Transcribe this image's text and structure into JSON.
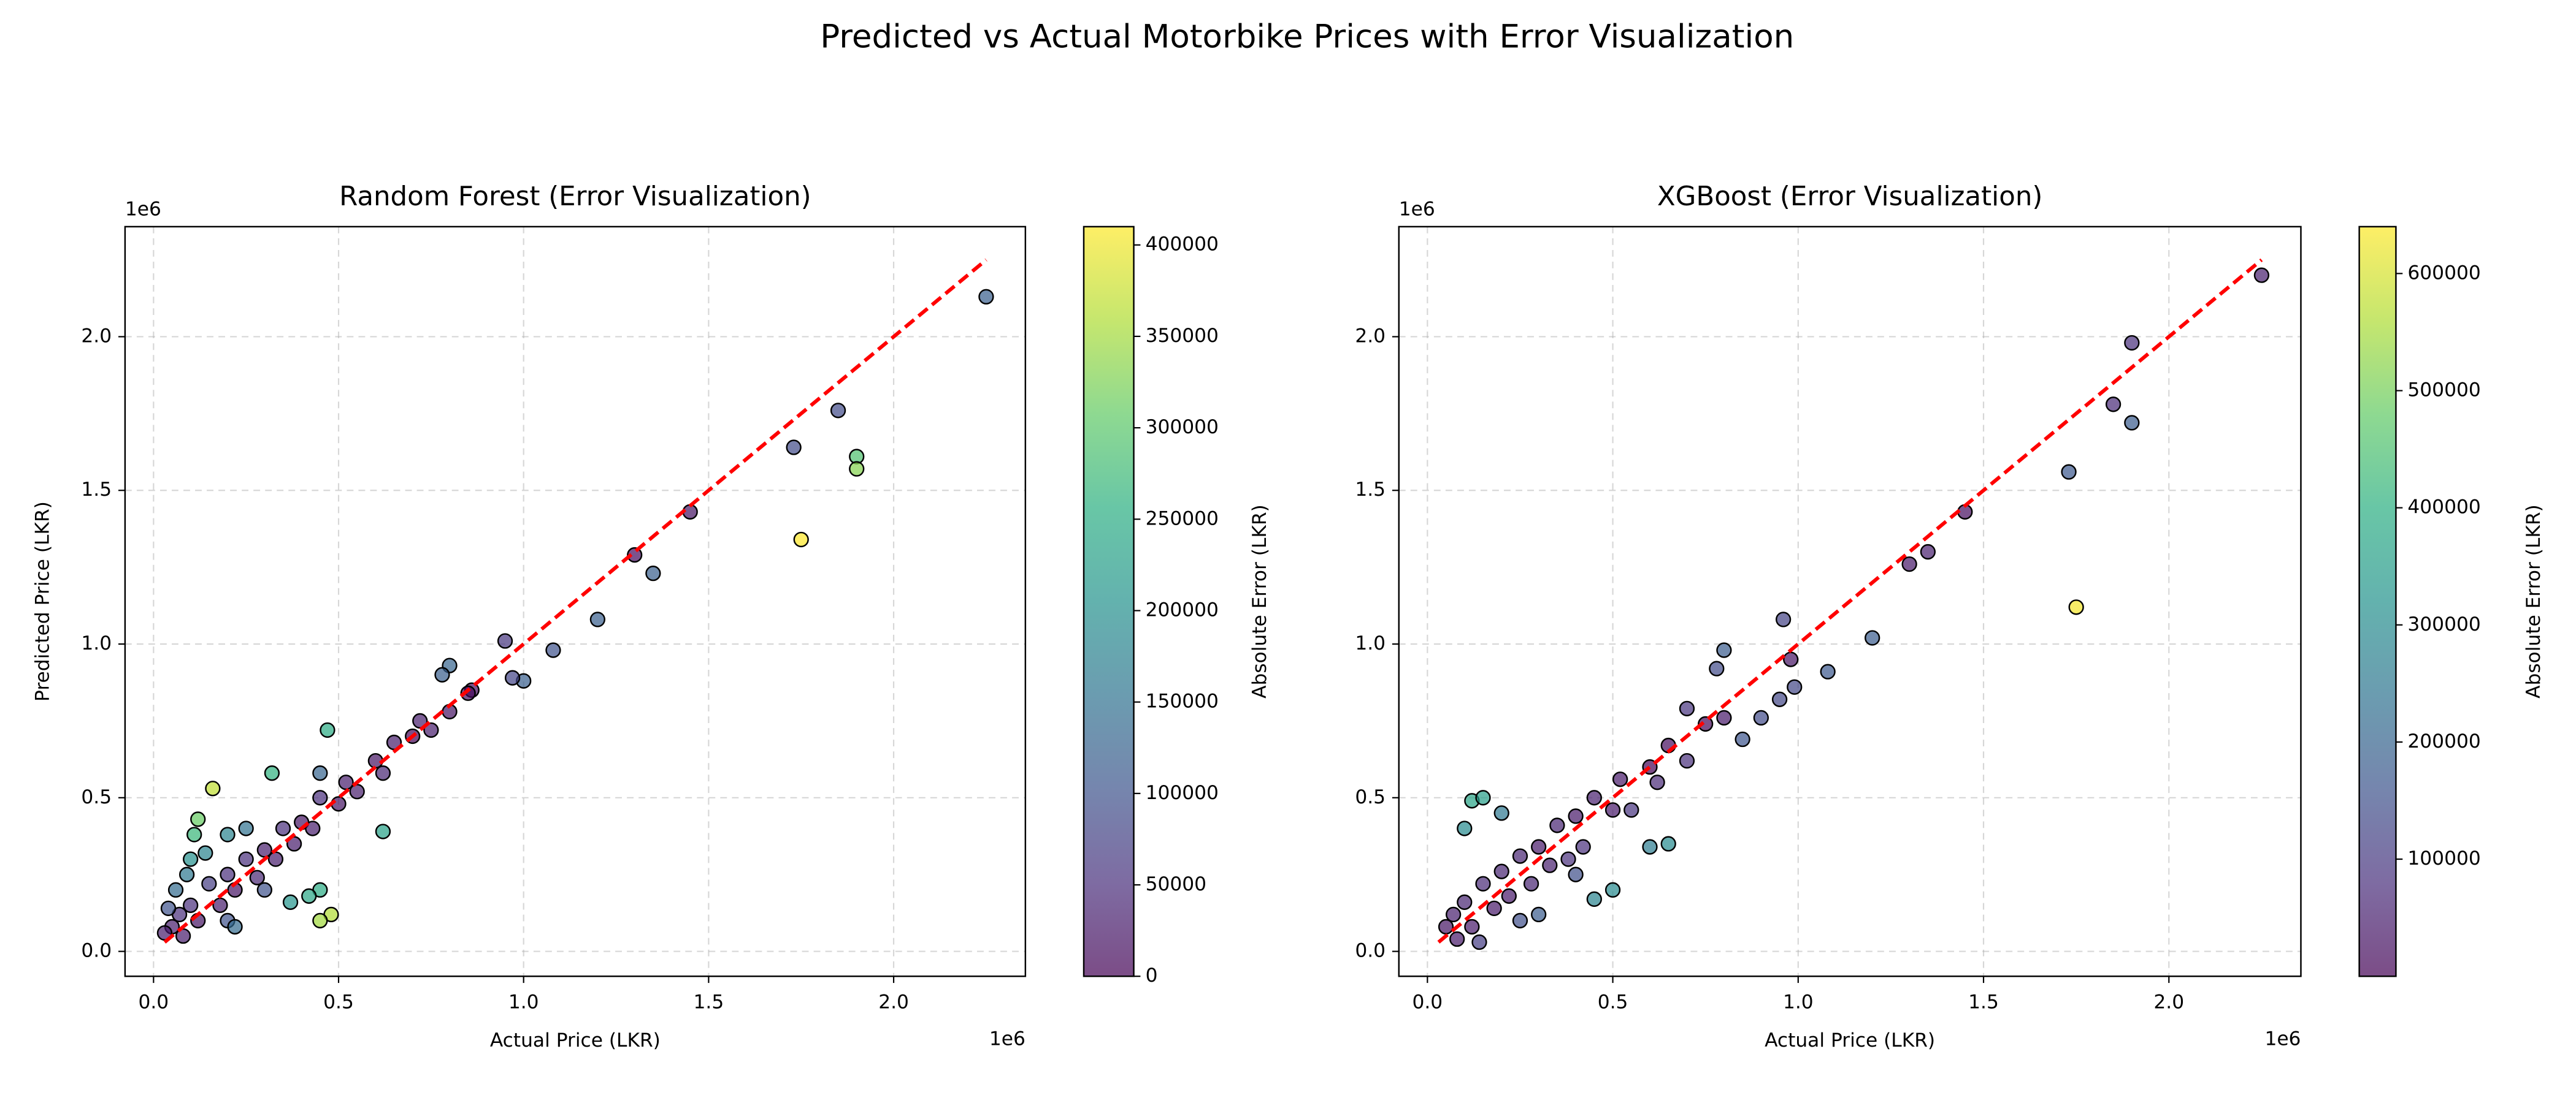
{
  "title": "Predicted vs Actual Motorbike Prices with Error Visualization",
  "chart_data": [
    {
      "type": "scatter",
      "title": "Random Forest (Error Visualization)",
      "xlabel": "Actual Price (LKR)",
      "ylabel": "Predicted Price (LKR)",
      "x_offset_label": "1e6",
      "y_offset_label": "1e6",
      "xlim": [
        -0.077,
        2.356
      ],
      "ylim": [
        -0.081,
        2.358
      ],
      "xticks": [
        {
          "value": 0,
          "label": "0.0"
        },
        0.5,
        {
          "value": 1,
          "label": "1.0"
        },
        1.5,
        {
          "value": 2,
          "label": "2.0"
        }
      ],
      "yticks": [
        {
          "value": 0,
          "label": "0.0"
        },
        0.5,
        {
          "value": 1,
          "label": "1.0"
        },
        1.5,
        {
          "value": 2,
          "label": "2.0"
        }
      ],
      "grid": true,
      "series": [
        {
          "x": [
            2.25,
            1.85,
            1.73,
            1.9,
            1.9,
            1.75,
            1.45,
            1.3,
            1.35,
            1.2,
            1.08,
            0.95,
            1.0,
            0.97,
            0.86,
            0.8,
            0.78,
            0.47,
            0.45,
            0.32,
            0.16,
            0.12,
            0.11,
            0.48,
            0.45,
            0.45,
            0.42,
            0.37,
            0.62,
            0.05,
            0.07,
            0.08,
            0.1,
            0.12,
            0.15,
            0.18,
            0.2,
            0.22,
            0.25,
            0.28,
            0.3,
            0.33,
            0.35,
            0.38,
            0.4,
            0.43,
            0.45,
            0.5,
            0.52,
            0.55,
            0.6,
            0.62,
            0.65,
            0.7,
            0.72,
            0.75,
            0.8,
            0.85,
            0.1,
            0.14,
            0.2,
            0.25,
            0.06,
            0.09,
            0.2,
            0.22,
            0.3,
            0.03,
            0.04
          ],
          "values": [
            2.13,
            1.76,
            1.64,
            1.61,
            1.57,
            1.34,
            1.43,
            1.29,
            1.23,
            1.08,
            0.98,
            1.01,
            0.88,
            0.89,
            0.85,
            0.93,
            0.9,
            0.72,
            0.58,
            0.58,
            0.53,
            0.43,
            0.38,
            0.12,
            0.1,
            0.2,
            0.18,
            0.16,
            0.39,
            0.08,
            0.12,
            0.05,
            0.15,
            0.1,
            0.22,
            0.15,
            0.25,
            0.2,
            0.3,
            0.24,
            0.33,
            0.3,
            0.4,
            0.35,
            0.42,
            0.4,
            0.5,
            0.48,
            0.55,
            0.52,
            0.62,
            0.58,
            0.68,
            0.7,
            0.75,
            0.72,
            0.78,
            0.84,
            0.3,
            0.32,
            0.38,
            0.4,
            0.2,
            0.25,
            0.1,
            0.08,
            0.2,
            0.06,
            0.14
          ],
          "errors": [
            120000,
            90000,
            90000,
            290000,
            330000,
            410000,
            20000,
            10000,
            120000,
            120000,
            100000,
            60000,
            120000,
            80000,
            10000,
            130000,
            120000,
            250000,
            130000,
            260000,
            370000,
            310000,
            270000,
            360000,
            350000,
            250000,
            240000,
            210000,
            230000,
            30000,
            50000,
            30000,
            50000,
            20000,
            70000,
            30000,
            50000,
            20000,
            50000,
            40000,
            30000,
            30000,
            50000,
            30000,
            20000,
            30000,
            50000,
            20000,
            30000,
            30000,
            20000,
            40000,
            30000,
            0,
            30000,
            30000,
            20000,
            10000,
            200000,
            180000,
            180000,
            150000,
            140000,
            160000,
            100000,
            140000,
            100000,
            30000,
            100000
          ]
        }
      ],
      "reference_line": {
        "x": [
          0.03,
          2.25
        ],
        "values": [
          0.03,
          2.25
        ],
        "color": "#ff0000",
        "style": "dashed"
      },
      "colorbar": {
        "label": "Absolute Error (LKR)",
        "colormap": "viridis",
        "lim": [
          0,
          410000
        ],
        "ticks": [
          0,
          50000,
          100000,
          150000,
          200000,
          250000,
          300000,
          350000,
          400000
        ]
      }
    },
    {
      "type": "scatter",
      "title": "XGBoost (Error Visualization)",
      "xlabel": "Actual Price (LKR)",
      "x_offset_label": "1e6",
      "y_offset_label": "1e6",
      "xlim": [
        -0.077,
        2.356
      ],
      "ylim": [
        -0.081,
        2.358
      ],
      "xticks": [
        {
          "value": 0,
          "label": "0.0"
        },
        0.5,
        {
          "value": 1,
          "label": "1.0"
        },
        1.5,
        {
          "value": 2,
          "label": "2.0"
        }
      ],
      "yticks": [
        {
          "value": 0,
          "label": "0.0"
        },
        0.5,
        {
          "value": 1,
          "label": "1.0"
        },
        1.5,
        {
          "value": 2,
          "label": "2.0"
        }
      ],
      "grid": true,
      "series": [
        {
          "x": [
            2.25,
            1.9,
            1.85,
            1.9,
            1.73,
            1.75,
            1.45,
            1.35,
            1.3,
            1.2,
            1.08,
            0.96,
            0.98,
            0.99,
            0.95,
            0.8,
            0.78,
            0.85,
            0.9,
            0.7,
            0.65,
            0.6,
            0.5,
            0.45,
            0.12,
            0.15,
            0.1,
            0.2,
            0.05,
            0.07,
            0.08,
            0.1,
            0.12,
            0.14,
            0.15,
            0.18,
            0.2,
            0.22,
            0.25,
            0.28,
            0.3,
            0.33,
            0.35,
            0.38,
            0.4,
            0.42,
            0.45,
            0.5,
            0.52,
            0.55,
            0.6,
            0.62,
            0.65,
            0.7,
            0.75,
            0.8,
            0.3,
            0.25,
            0.4
          ],
          "values": [
            2.2,
            1.98,
            1.78,
            1.72,
            1.56,
            1.12,
            1.43,
            1.3,
            1.26,
            1.02,
            0.91,
            1.08,
            0.95,
            0.86,
            0.82,
            0.98,
            0.92,
            0.69,
            0.76,
            0.79,
            0.35,
            0.34,
            0.2,
            0.17,
            0.49,
            0.5,
            0.4,
            0.45,
            0.08,
            0.12,
            0.04,
            0.16,
            0.08,
            0.03,
            0.22,
            0.14,
            0.26,
            0.18,
            0.31,
            0.22,
            0.34,
            0.28,
            0.41,
            0.3,
            0.44,
            0.34,
            0.5,
            0.46,
            0.56,
            0.46,
            0.6,
            0.55,
            0.67,
            0.62,
            0.74,
            0.76,
            0.12,
            0.1,
            0.25
          ],
          "errors": [
            50000,
            80000,
            70000,
            180000,
            170000,
            630000,
            20000,
            50000,
            40000,
            180000,
            170000,
            120000,
            30000,
            130000,
            130000,
            180000,
            140000,
            160000,
            140000,
            90000,
            300000,
            260000,
            300000,
            280000,
            370000,
            350000,
            300000,
            250000,
            30000,
            50000,
            40000,
            60000,
            40000,
            110000,
            70000,
            40000,
            60000,
            40000,
            60000,
            60000,
            40000,
            50000,
            60000,
            80000,
            40000,
            80000,
            50000,
            40000,
            40000,
            90000,
            0,
            70000,
            20000,
            80000,
            10000,
            40000,
            180000,
            150000,
            150000
          ]
        }
      ],
      "reference_line": {
        "x": [
          0.03,
          2.25
        ],
        "values": [
          0.03,
          2.25
        ],
        "color": "#ff0000",
        "style": "dashed"
      },
      "colorbar": {
        "label": "Absolute Error (LKR)",
        "colormap": "viridis",
        "lim": [
          0,
          640000
        ],
        "ticks": [
          100000,
          200000,
          300000,
          400000,
          500000,
          600000
        ]
      }
    }
  ]
}
